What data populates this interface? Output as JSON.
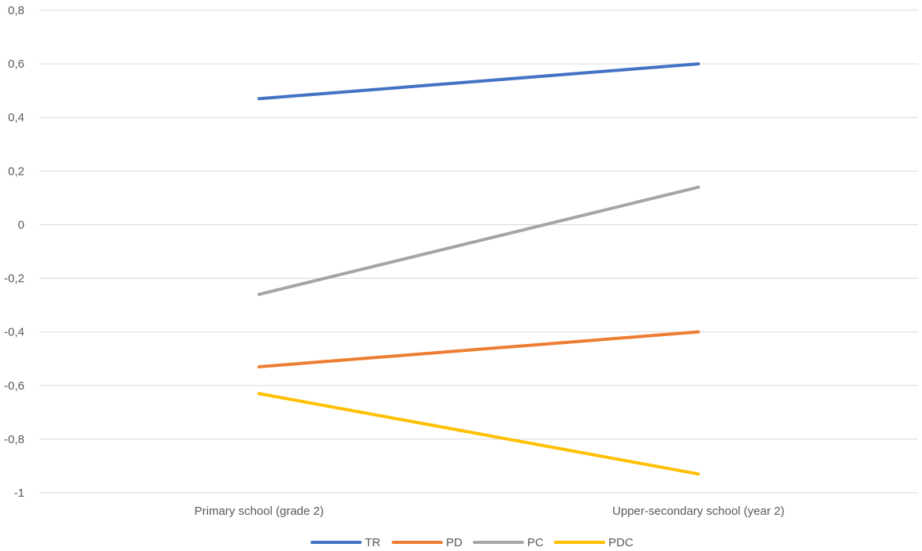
{
  "chart_data": {
    "type": "line",
    "title": "",
    "xlabel": "",
    "ylabel": "",
    "categories": [
      "Primary school (grade 2)",
      "Upper-secondary school (year 2)"
    ],
    "ylim": [
      -1,
      0.8
    ],
    "yticks": [
      0.8,
      0.6,
      0.4,
      0.2,
      0,
      -0.2,
      -0.4,
      -0.6,
      -0.8,
      -1
    ],
    "ytick_labels": [
      "0,8",
      "0,6",
      "0,4",
      "0,2",
      "0",
      "-0,2",
      "-0,4",
      "-0,6",
      "-0,8",
      "-1"
    ],
    "grid": true,
    "legend_position": "bottom",
    "series": [
      {
        "name": "TR",
        "values": [
          0.47,
          0.6
        ],
        "color": "#4472c4"
      },
      {
        "name": "PD",
        "values": [
          -0.53,
          -0.4
        ],
        "color": "#ed7d31"
      },
      {
        "name": "PC",
        "values": [
          -0.26,
          0.14
        ],
        "color": "#a5a5a5"
      },
      {
        "name": "PDC",
        "values": [
          -0.63,
          -0.93
        ],
        "color": "#ffc000"
      }
    ]
  }
}
